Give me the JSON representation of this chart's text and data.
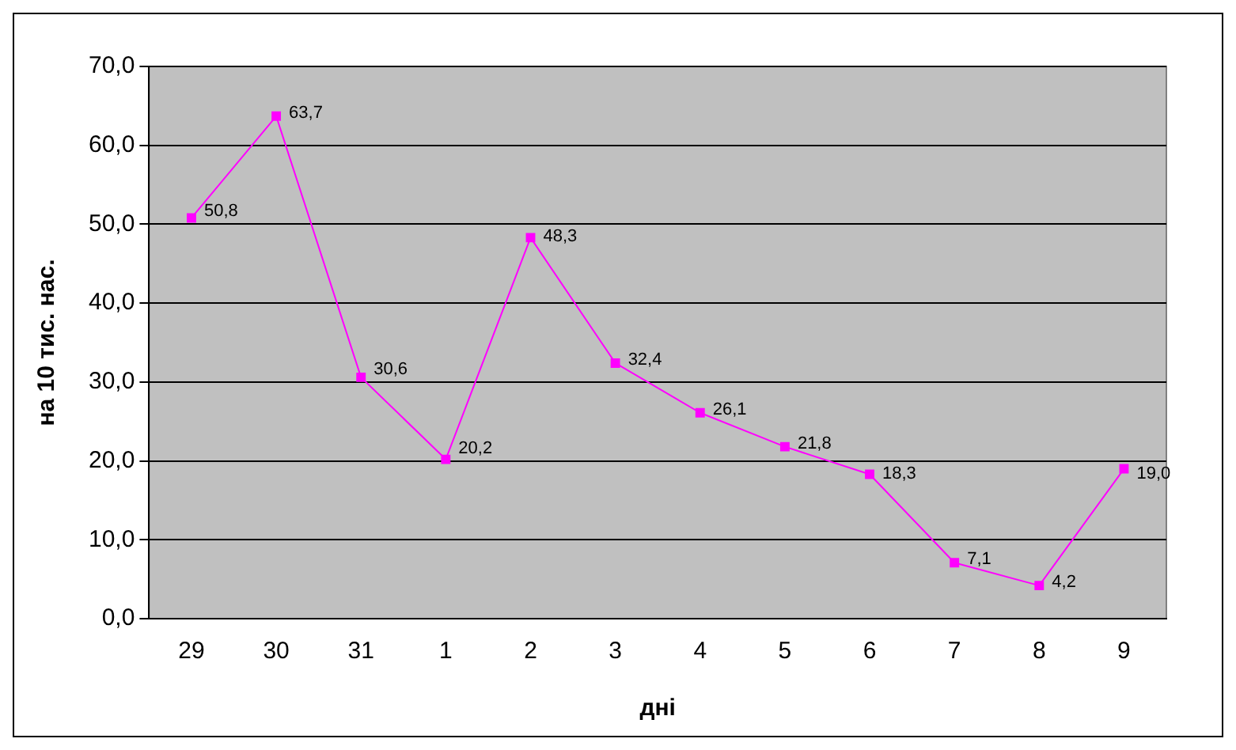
{
  "chart_data": {
    "type": "line",
    "xlabel": "дні",
    "ylabel": "на 10 тис. нас.",
    "categories": [
      "29",
      "30",
      "31",
      "1",
      "2",
      "3",
      "4",
      "5",
      "6",
      "7",
      "8",
      "9"
    ],
    "series": [
      {
        "color": "#ff00ff",
        "values": [
          50.8,
          63.7,
          30.6,
          20.2,
          48.3,
          32.4,
          26.1,
          21.8,
          18.3,
          7.1,
          4.2,
          19.0
        ],
        "value_labels": [
          "50,8",
          "63,7",
          "30,6",
          "20,2",
          "48,3",
          "32,4",
          "26,1",
          "21,8",
          "18,3",
          "7,1",
          "4,2",
          "19,0"
        ]
      }
    ],
    "ylim": [
      0,
      70
    ],
    "yticks": [
      {
        "value": 0,
        "label": "0,0"
      },
      {
        "value": 10,
        "label": "10,0"
      },
      {
        "value": 20,
        "label": "20,0"
      },
      {
        "value": 30,
        "label": "30,0"
      },
      {
        "value": 40,
        "label": "40,0"
      },
      {
        "value": 50,
        "label": "50,0"
      },
      {
        "value": 60,
        "label": "60,0"
      },
      {
        "value": 70,
        "label": "70,0"
      }
    ],
    "grid": "y",
    "legend": false,
    "marker": "square",
    "line_style": "solid"
  }
}
